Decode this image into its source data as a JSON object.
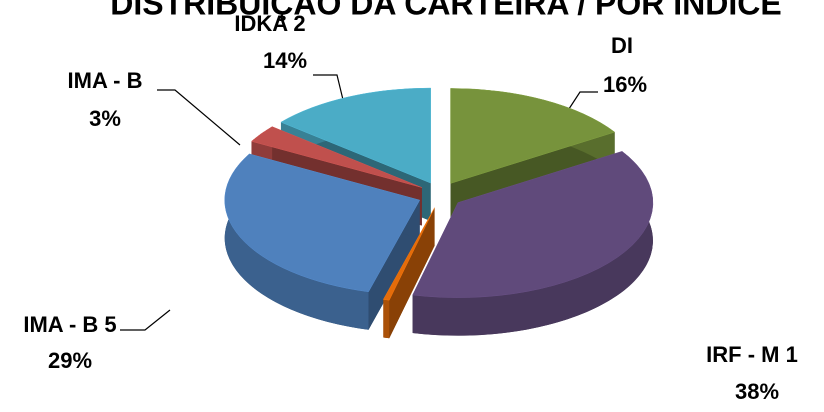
{
  "chart_data": {
    "type": "pie3d",
    "title": "DISTRIBUIÇÃO DA CARTEIRA / POR ÍNDICE",
    "categories": [
      "DI",
      "IRF - M 1",
      null,
      "IMA - B 5",
      "IMA - B",
      "IDKA 2"
    ],
    "values": [
      16,
      38,
      0.5,
      29,
      3,
      14
    ],
    "value_labels": [
      "16%",
      "38%",
      null,
      "29%",
      "3%",
      "14%"
    ],
    "colors": [
      "#77933c",
      "#604a7b",
      "#e46c0a",
      "#4f81bd",
      "#c0504d",
      "#4bacc6"
    ]
  }
}
